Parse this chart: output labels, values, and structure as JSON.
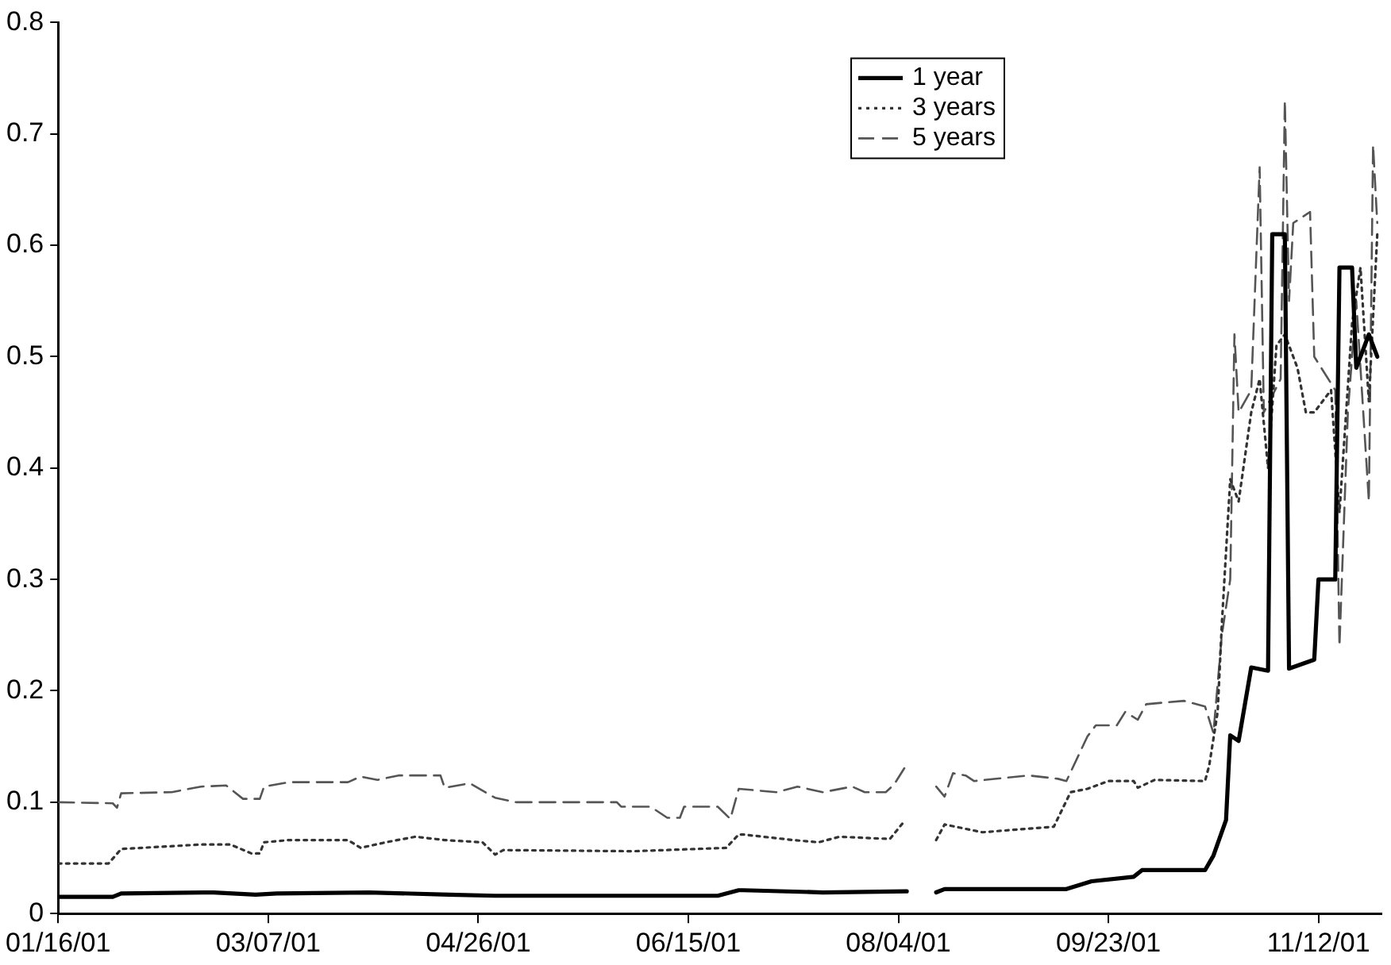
{
  "chart_data": {
    "type": "line",
    "legend": "top right",
    "grid": false,
    "marker": "none",
    "xlim": [
      "2001-01-16",
      "2001-11-27"
    ],
    "xticks": [
      {
        "value": "2001-01-16",
        "label": "01/16/01"
      },
      {
        "value": "2001-03-07",
        "label": "03/07/01"
      },
      {
        "value": "2001-04-26",
        "label": "04/26/01"
      },
      {
        "value": "2001-06-15",
        "label": "06/15/01"
      },
      {
        "value": "2001-08-04",
        "label": "08/04/01"
      },
      {
        "value": "2001-09-23",
        "label": "09/23/01"
      },
      {
        "value": "2001-11-12",
        "label": "11/12/01"
      }
    ],
    "ylim": [
      0,
      0.8
    ],
    "yticks": [
      0,
      0.1,
      0.2,
      0.3,
      0.4,
      0.5,
      0.6,
      0.7,
      0.8
    ],
    "series": [
      {
        "name": "1 year",
        "color": "#000000",
        "line_style": "solid",
        "x": [
          "2001-01-16",
          "2001-01-29",
          "2001-01-31",
          "2001-02-22",
          "2001-03-04",
          "2001-03-09",
          "2001-03-31",
          "2001-04-19",
          "2001-04-30",
          "2001-05-29",
          "2001-06-22",
          "2001-06-27",
          "2001-06-28",
          "2001-07-17",
          "2001-08-06",
          "2001-08-08",
          "2001-08-13",
          "2001-08-15",
          "2001-09-13",
          "2001-09-19",
          "2001-09-29",
          "2001-10-01",
          "2001-10-16",
          "2001-10-18",
          "2001-10-21",
          "2001-10-22",
          "2001-10-24",
          "2001-10-27",
          "2001-10-31",
          "2001-11-01",
          "2001-11-04",
          "2001-11-05",
          "2001-11-11",
          "2001-11-12",
          "2001-11-16",
          "2001-11-17",
          "2001-11-20",
          "2001-11-21",
          "2001-11-24",
          "2001-11-26"
        ],
        "values": [
          0.015,
          0.015,
          0.018,
          0.019,
          0.017,
          0.018,
          0.019,
          0.017,
          0.016,
          0.016,
          0.016,
          0.021,
          0.021,
          0.019,
          0.02,
          null,
          0.019,
          0.022,
          0.022,
          0.029,
          0.033,
          0.039,
          0.039,
          0.052,
          0.084,
          0.16,
          0.155,
          0.221,
          0.218,
          0.61,
          0.61,
          0.22,
          0.228,
          0.3,
          0.3,
          0.58,
          0.58,
          0.49,
          0.52,
          0.5
        ]
      },
      {
        "name": "3 years",
        "color": "#333333",
        "line_style": "dotted",
        "x": [
          "2001-01-16",
          "2001-01-28",
          "2001-01-31",
          "2001-02-19",
          "2001-02-26",
          "2001-03-03",
          "2001-03-05",
          "2001-03-06",
          "2001-03-12",
          "2001-03-26",
          "2001-03-29",
          "2001-04-04",
          "2001-04-11",
          "2001-04-18",
          "2001-04-27",
          "2001-04-30",
          "2001-05-02",
          "2001-06-02",
          "2001-06-24",
          "2001-06-27",
          "2001-06-28",
          "2001-07-10",
          "2001-07-16",
          "2001-07-21",
          "2001-08-02",
          "2001-08-05",
          "2001-08-08",
          "2001-08-13",
          "2001-08-15",
          "2001-08-24",
          "2001-09-10",
          "2001-09-14",
          "2001-09-18",
          "2001-09-23",
          "2001-09-29",
          "2001-09-30",
          "2001-10-04",
          "2001-10-16",
          "2001-10-17",
          "2001-10-19",
          "2001-10-20",
          "2001-10-22",
          "2001-10-24",
          "2001-10-27",
          "2001-10-29",
          "2001-10-31",
          "2001-11-02",
          "2001-11-04",
          "2001-11-07",
          "2001-11-09",
          "2001-11-11",
          "2001-11-15",
          "2001-11-17",
          "2001-11-20",
          "2001-11-22",
          "2001-11-24",
          "2001-11-26"
        ],
        "values": [
          0.045,
          0.045,
          0.058,
          0.062,
          0.062,
          0.054,
          0.054,
          0.064,
          0.066,
          0.066,
          0.059,
          0.064,
          0.069,
          0.066,
          0.064,
          0.053,
          0.057,
          0.056,
          0.059,
          0.071,
          0.071,
          0.066,
          0.064,
          0.069,
          0.067,
          0.081,
          null,
          0.066,
          0.08,
          0.073,
          0.078,
          0.109,
          0.112,
          0.119,
          0.119,
          0.113,
          0.12,
          0.119,
          0.133,
          0.181,
          0.26,
          0.39,
          0.37,
          0.45,
          0.48,
          0.4,
          0.51,
          0.52,
          0.49,
          0.45,
          0.45,
          0.47,
          0.36,
          0.53,
          0.58,
          0.46,
          0.61
        ]
      },
      {
        "name": "5 years",
        "color": "#555555",
        "line_style": "dashed",
        "x": [
          "2001-01-16",
          "2001-01-29",
          "2001-01-30",
          "2001-01-31",
          "2001-02-12",
          "2001-02-19",
          "2001-02-25",
          "2001-03-01",
          "2001-03-05",
          "2001-03-06",
          "2001-03-12",
          "2001-03-26",
          "2001-03-29",
          "2001-04-02",
          "2001-04-07",
          "2001-04-17",
          "2001-04-18",
          "2001-04-24",
          "2001-04-30",
          "2001-05-05",
          "2001-05-29",
          "2001-05-30",
          "2001-06-06",
          "2001-06-10",
          "2001-06-13",
          "2001-06-14",
          "2001-06-22",
          "2001-06-25",
          "2001-06-27",
          "2001-07-06",
          "2001-07-11",
          "2001-07-17",
          "2001-07-24",
          "2001-07-27",
          "2001-08-01",
          "2001-08-03",
          "2001-08-06",
          "2001-08-08",
          "2001-08-13",
          "2001-08-15",
          "2001-08-17",
          "2001-08-20",
          "2001-08-22",
          "2001-09-04",
          "2001-09-11",
          "2001-09-13",
          "2001-09-18",
          "2001-09-20",
          "2001-09-25",
          "2001-09-27",
          "2001-09-30",
          "2001-10-02",
          "2001-10-11",
          "2001-10-16",
          "2001-10-18",
          "2001-10-20",
          "2001-10-22",
          "2001-10-23",
          "2001-10-24",
          "2001-10-27",
          "2001-10-29",
          "2001-10-30",
          "2001-11-03",
          "2001-11-04",
          "2001-11-05",
          "2001-11-06",
          "2001-11-10",
          "2001-11-11",
          "2001-11-16",
          "2001-11-17",
          "2001-11-19",
          "2001-11-21",
          "2001-11-24",
          "2001-11-25",
          "2001-11-26"
        ],
        "values": [
          0.1,
          0.099,
          0.095,
          0.108,
          0.109,
          0.114,
          0.115,
          0.103,
          0.103,
          0.114,
          0.118,
          0.118,
          0.123,
          0.12,
          0.124,
          0.124,
          0.113,
          0.117,
          0.104,
          0.1,
          0.1,
          0.096,
          0.096,
          0.086,
          0.086,
          0.096,
          0.096,
          0.085,
          0.112,
          0.109,
          0.114,
          0.109,
          0.114,
          0.109,
          0.109,
          0.116,
          0.134,
          null,
          0.114,
          0.105,
          0.126,
          0.124,
          0.119,
          0.124,
          0.121,
          0.119,
          0.159,
          0.169,
          0.169,
          0.181,
          0.174,
          0.188,
          0.191,
          0.186,
          0.162,
          0.25,
          0.3,
          0.52,
          0.45,
          0.47,
          0.67,
          0.45,
          0.48,
          0.73,
          0.55,
          0.62,
          0.63,
          0.5,
          0.47,
          0.24,
          0.45,
          0.55,
          0.37,
          0.69,
          0.62
        ]
      }
    ]
  }
}
